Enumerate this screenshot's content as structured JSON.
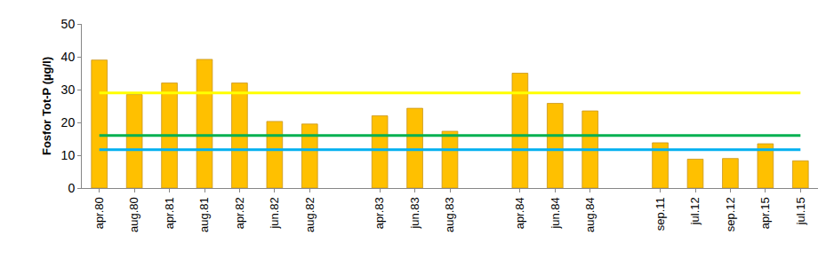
{
  "chart_data": {
    "type": "bar",
    "y_label": "Fosfor Tot-P (µg/l)",
    "categories": [
      "apr.80",
      "aug.80",
      "apr.81",
      "aug.81",
      "apr.82",
      "jun.82",
      "aug.82",
      null,
      "apr.83",
      "jun.83",
      "aug.83",
      null,
      "apr.84",
      "jun.84",
      "aug.84",
      null,
      "sep.11",
      "jul.12",
      "sep.12",
      "apr.15",
      "jul.15"
    ],
    "series": [
      {
        "type": "bar",
        "color": "#ffc000",
        "values": [
          39,
          28.5,
          32,
          39.2,
          32,
          20.3,
          19.5,
          null,
          22,
          24.3,
          17.3,
          null,
          35,
          25.8,
          23.5,
          null,
          13.8,
          8.8,
          9,
          13.5,
          8.3
        ]
      },
      {
        "type": "line",
        "color": "#ffff00",
        "values": [
          29,
          29,
          29,
          29,
          29,
          29,
          29,
          29,
          29,
          29,
          29,
          29,
          29,
          29,
          29,
          29,
          29,
          29,
          29,
          29,
          29
        ]
      },
      {
        "type": "line",
        "color": "#00b050",
        "values": [
          16,
          16,
          16,
          16,
          16,
          16,
          16,
          16,
          16,
          16,
          16,
          16,
          16,
          16,
          16,
          16,
          16,
          16,
          16,
          16,
          16
        ]
      },
      {
        "type": "line",
        "color": "#00b0f0",
        "values": [
          11.7,
          11.7,
          11.7,
          11.7,
          11.7,
          11.7,
          11.7,
          11.7,
          11.7,
          11.7,
          11.7,
          11.7,
          11.7,
          11.7,
          11.7,
          11.7,
          11.7,
          11.7,
          11.7,
          11.7,
          11.7
        ]
      }
    ],
    "ylim": [
      0,
      50
    ],
    "yticks": [
      0,
      10,
      20,
      30,
      40,
      50
    ],
    "grid": false
  }
}
